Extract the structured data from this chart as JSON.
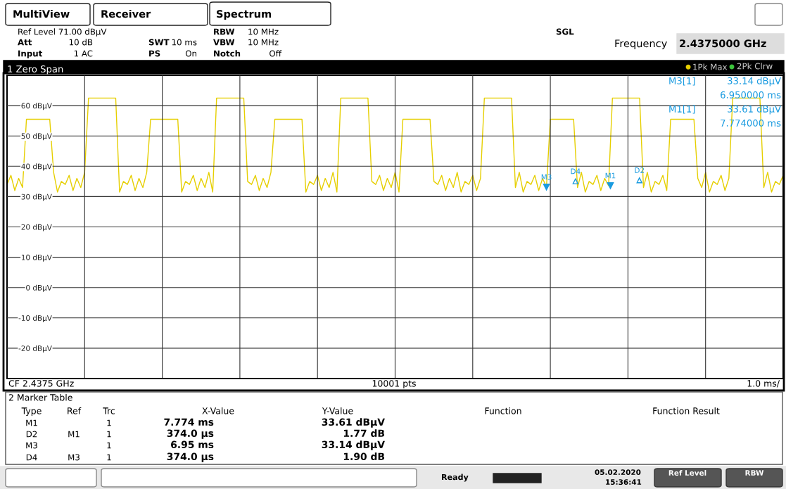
{
  "chart_data": {
    "type": "line",
    "title": "1 Zero Span",
    "categories": [
      null,
      null,
      null,
      null,
      null,
      null,
      null,
      null,
      null,
      null,
      null,
      null,
      null,
      null,
      null,
      null,
      null,
      null,
      null,
      null,
      null,
      null,
      null,
      null,
      null,
      null,
      null,
      null,
      null,
      null,
      null,
      null,
      null,
      null,
      null,
      null,
      null,
      null,
      null,
      null,
      null,
      null,
      null,
      null,
      null,
      null,
      null,
      null,
      null,
      null,
      null,
      null,
      null,
      null,
      null,
      null,
      null,
      null,
      null,
      null,
      null,
      null,
      null,
      null,
      null,
      null,
      null,
      null,
      null,
      null,
      null,
      null,
      null,
      null,
      null,
      null,
      null,
      null,
      null,
      null,
      null,
      null,
      null,
      null,
      null,
      null,
      null,
      null,
      null,
      null,
      null,
      null,
      null,
      null,
      null,
      null,
      null,
      null,
      null,
      null,
      null,
      null,
      null,
      null,
      null,
      null,
      null,
      null,
      null,
      null,
      null,
      null,
      null,
      null,
      null,
      null,
      null,
      null,
      null,
      null,
      null,
      null,
      null,
      null,
      null,
      null,
      null,
      null,
      null,
      null,
      null,
      null,
      null,
      null,
      null,
      null,
      null,
      null,
      null,
      null,
      null,
      null,
      null,
      null,
      null,
      null,
      null,
      null,
      null,
      null,
      null,
      null,
      null,
      null,
      null,
      null,
      null,
      null,
      null,
      null,
      null,
      null,
      null,
      null,
      null,
      null,
      null,
      null,
      null,
      null,
      null,
      null,
      null,
      null,
      null,
      null,
      null,
      null,
      null,
      null,
      null,
      null,
      null,
      null,
      null,
      null,
      null,
      null,
      null,
      null,
      null,
      null,
      null,
      null,
      null,
      null,
      null,
      null,
      null,
      null,
      null
    ],
    "ylim": [
      -30,
      70
    ],
    "yticks": [
      {
        "value": -20,
        "label": "-20 dBµV"
      },
      {
        "value": -10,
        "label": "-10 dBµV"
      },
      {
        "value": 0,
        "label": "0 dBµV"
      },
      {
        "value": 10,
        "label": "10 dBµV"
      },
      {
        "value": 20,
        "label": "20 dBµV"
      },
      {
        "value": 30,
        "label": "30 dBµV"
      },
      {
        "value": 40,
        "label": "40 dBµV"
      },
      {
        "value": 50,
        "label": "50 dBµV"
      },
      {
        "value": 60,
        "label": "60 dBµV"
      }
    ],
    "tick_labels": "y",
    "grid": true,
    "legend": "top right",
    "series": [
      {
        "name": "1Pk Max",
        "color": "#e6cf00",
        "values": [
          34,
          37,
          32,
          36,
          33,
          55.5,
          55.5,
          55.5,
          55.5,
          55.5,
          55.5,
          55.5,
          38,
          31.5,
          35,
          34,
          37,
          32,
          36,
          33,
          38,
          62.5,
          62.5,
          62.5,
          62.5,
          62.5,
          62.5,
          62.5,
          62.5,
          31.5,
          35,
          34,
          37,
          32,
          36,
          33,
          38,
          55.5,
          55.5,
          55.5,
          55.5,
          55.5,
          55.5,
          55.5,
          55.5,
          31.5,
          35,
          34,
          37,
          32,
          36,
          33,
          38,
          31.5,
          62.5,
          62.5,
          62.5,
          62.5,
          62.5,
          62.5,
          62.5,
          62.5,
          35,
          34,
          37,
          32,
          36,
          33,
          38,
          55.5,
          55.5,
          55.5,
          55.5,
          55.5,
          55.5,
          55.5,
          55.5,
          31.5,
          35,
          34,
          37,
          32,
          36,
          33,
          38,
          31.5,
          62.5,
          62.5,
          62.5,
          62.5,
          62.5,
          62.5,
          62.5,
          62.5,
          35,
          34,
          37,
          32,
          36,
          33,
          38,
          31.5,
          55.5,
          55.5,
          55.5,
          55.5,
          55.5,
          55.5,
          55.5,
          55.5,
          35,
          34,
          37,
          32,
          36,
          33,
          38,
          31.5,
          35,
          34,
          37,
          32,
          36,
          62.5,
          62.5,
          62.5,
          62.5,
          62.5,
          62.5,
          62.5,
          62.5,
          33,
          38,
          31.5,
          35,
          34,
          37,
          32,
          36,
          33.14,
          55.5,
          55.5,
          55.5,
          55.5,
          55.5,
          55.5,
          55.5,
          33,
          38,
          31.5,
          35,
          34,
          37,
          32,
          36,
          33.61,
          62.5,
          62.5,
          62.5,
          62.5,
          62.5,
          62.5,
          62.5,
          62.5,
          33,
          38,
          31.5,
          35,
          34,
          37,
          32,
          55.5,
          55.5,
          55.5,
          55.5,
          55.5,
          55.5,
          55.5,
          36,
          33,
          38,
          31.5,
          35,
          34,
          37,
          32,
          36,
          62.5,
          62.5,
          62.5,
          62.5,
          62.5,
          62.5,
          62.5,
          62.5,
          33,
          38,
          31.5,
          35,
          34,
          37
        ]
      }
    ],
    "annotations": [
      "M3",
      "D4",
      "M1",
      "D2",
      "MultiView",
      "Receiver",
      "Spectrum",
      "Ref Level 71.00 dBµV",
      "Att",
      "10 dB",
      "Input",
      "1 AC",
      "SWT",
      "10 ms",
      "PS",
      "On",
      "RBW",
      "10 MHz",
      "VBW",
      "10 MHz",
      "Notch",
      "Off",
      "SGL",
      "Frequency",
      "2.4375000 GHz",
      "2Pk Clrw",
      "M3[1]",
      "33.14 dBµV",
      "6.950000 ms",
      "M1[1]",
      "33.61 dBµV",
      "7.774000 ms",
      "CF 2.4375 GHz",
      "10001 pts",
      "1.0 ms/",
      "2 Marker Table",
      "Type",
      "Ref",
      "Trc",
      "X-Value",
      "Y-Value",
      "Function",
      "Function Result",
      "M1",
      "1",
      "7.774 ms",
      "33.61 dBµV",
      "D2",
      "M1",
      "1",
      "374.0 µs",
      "1.77 dB",
      "M3",
      "1",
      "6.95 ms",
      "33.14 dBµV",
      "D4",
      "M3",
      "1",
      "374.0 µs",
      "1.90 dB",
      "Ready",
      "05.02.2020",
      "15:36:41",
      "Ref Level",
      "RBW"
    ]
  }
}
